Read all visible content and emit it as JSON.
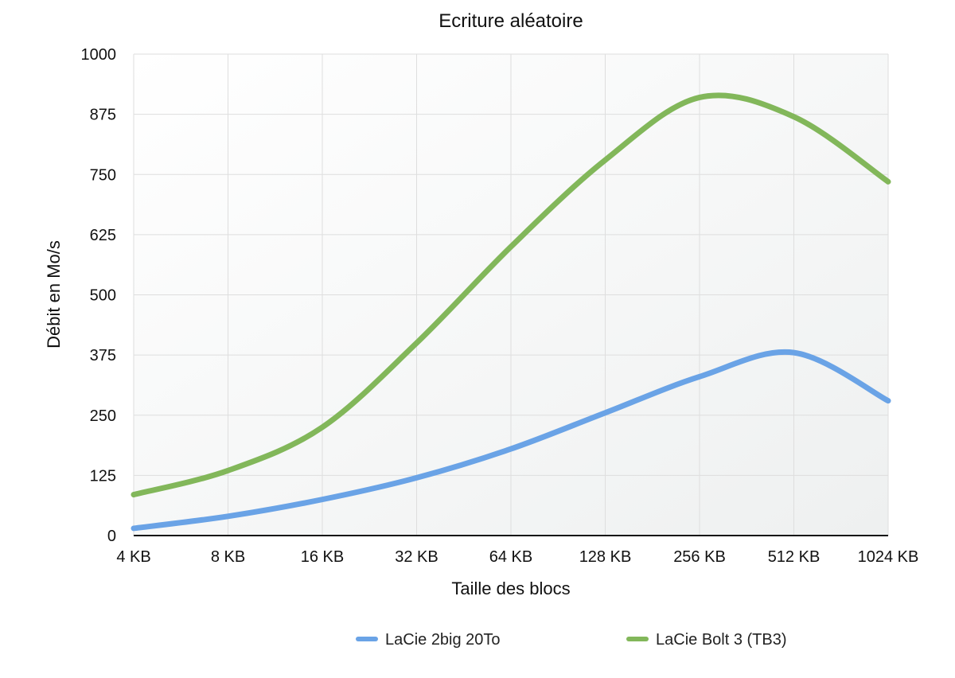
{
  "chart_data": {
    "type": "line",
    "title": "Ecriture aléatoire",
    "xlabel": "Taille des blocs",
    "ylabel": "Débit en Mo/s",
    "categories": [
      "4 KB",
      "8 KB",
      "16 KB",
      "32 KB",
      "64 KB",
      "128 KB",
      "256 KB",
      "512 KB",
      "1024 KB"
    ],
    "yticks": [
      0,
      125,
      250,
      375,
      500,
      625,
      750,
      875,
      1000
    ],
    "ylim": [
      0,
      1000
    ],
    "grid": true,
    "legend_position": "bottom",
    "series": [
      {
        "name": "LaCie 2big 20To",
        "color": "#6aa3e6",
        "values": [
          15,
          40,
          75,
          120,
          180,
          255,
          330,
          380,
          280
        ]
      },
      {
        "name": "LaCie Bolt 3 (TB3)",
        "color": "#82b75a",
        "values": [
          85,
          135,
          225,
          400,
          600,
          780,
          910,
          870,
          735
        ]
      }
    ]
  }
}
